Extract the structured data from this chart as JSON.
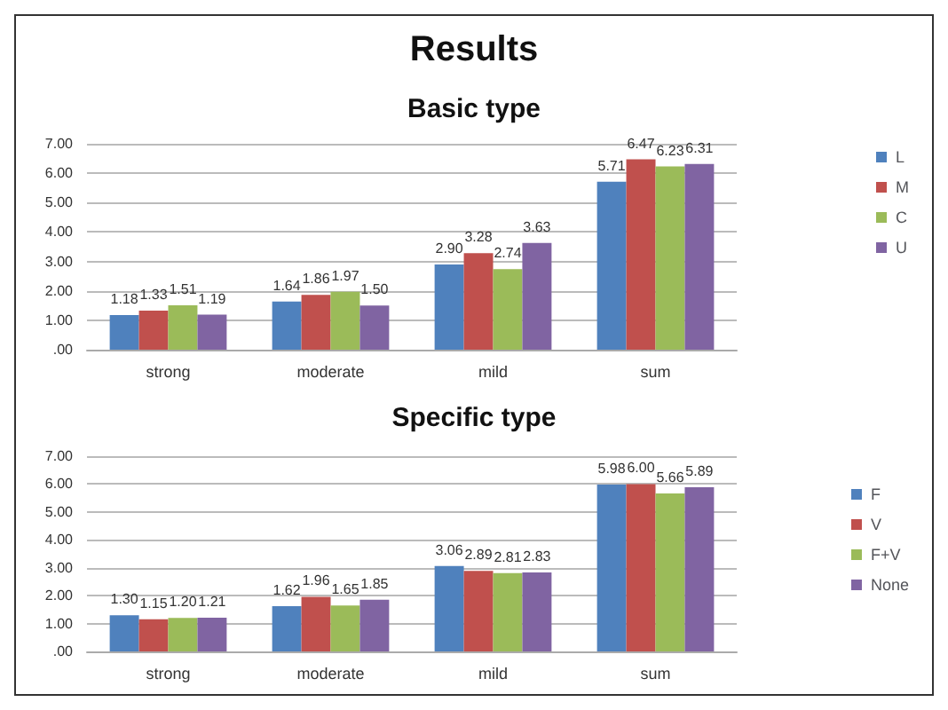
{
  "chart_data": [
    {
      "type": "bar",
      "title": "Results",
      "subtitle": "Basic type",
      "categories": [
        "strong",
        "moderate",
        "mild",
        "sum"
      ],
      "series": [
        {
          "name": "L",
          "color": "#4f81bd",
          "values": [
            1.18,
            1.64,
            2.9,
            5.71
          ],
          "value_labels": [
            "1.18",
            "1.64",
            "2.90",
            "5.71"
          ]
        },
        {
          "name": "M",
          "color": "#c0504d",
          "values": [
            1.33,
            1.86,
            3.28,
            6.47
          ],
          "value_labels": [
            "1.33",
            "1.86",
            "3.28",
            "6.47"
          ]
        },
        {
          "name": "C",
          "color": "#9bbb59",
          "values": [
            1.51,
            1.97,
            2.74,
            6.23
          ],
          "value_labels": [
            "1.51",
            "1.97",
            "2.74",
            "6.23"
          ]
        },
        {
          "name": "U",
          "color": "#8064a2",
          "values": [
            1.19,
            1.5,
            3.63,
            6.31
          ],
          "value_labels": [
            "1.19",
            "1.50",
            "3.63",
            "6.31"
          ]
        }
      ],
      "ylim": [
        0,
        7
      ],
      "yticks": [
        {
          "value": 0,
          "label": ".00"
        },
        {
          "value": 1,
          "label": "1.00"
        },
        {
          "value": 2,
          "label": "2.00"
        },
        {
          "value": 3,
          "label": "3.00"
        },
        {
          "value": 4,
          "label": "4.00"
        },
        {
          "value": 5,
          "label": "5.00"
        },
        {
          "value": 6,
          "label": "6.00"
        },
        {
          "value": 7,
          "label": "7.00"
        }
      ],
      "grid": "y",
      "legend": "right"
    },
    {
      "type": "bar",
      "title": "Specific type",
      "categories": [
        "strong",
        "moderate",
        "mild",
        "sum"
      ],
      "series": [
        {
          "name": "F",
          "color": "#4f81bd",
          "values": [
            1.3,
            1.62,
            3.06,
            5.98
          ],
          "value_labels": [
            "1.30",
            "1.62",
            "3.06",
            "5.98"
          ]
        },
        {
          "name": "V",
          "color": "#c0504d",
          "values": [
            1.15,
            1.96,
            2.89,
            6.0
          ],
          "value_labels": [
            "1.15",
            "1.96",
            "2.89",
            "6.00"
          ]
        },
        {
          "name": "F+V",
          "color": "#9bbb59",
          "values": [
            1.2,
            1.65,
            2.81,
            5.66
          ],
          "value_labels": [
            "1.20",
            "1.65",
            "2.81",
            "5.66"
          ]
        },
        {
          "name": "None",
          "color": "#8064a2",
          "values": [
            1.21,
            1.85,
            2.83,
            5.89
          ],
          "value_labels": [
            "1.21",
            "1.85",
            "2.83",
            "5.89"
          ]
        }
      ],
      "ylim": [
        0,
        7
      ],
      "yticks": [
        {
          "value": 0,
          "label": ".00"
        },
        {
          "value": 1,
          "label": "1.00"
        },
        {
          "value": 2,
          "label": "2.00"
        },
        {
          "value": 3,
          "label": "3.00"
        },
        {
          "value": 4,
          "label": "4.00"
        },
        {
          "value": 5,
          "label": "5.00"
        },
        {
          "value": 6,
          "label": "6.00"
        },
        {
          "value": 7,
          "label": "7.00"
        }
      ],
      "grid": "y",
      "legend": "right"
    }
  ]
}
